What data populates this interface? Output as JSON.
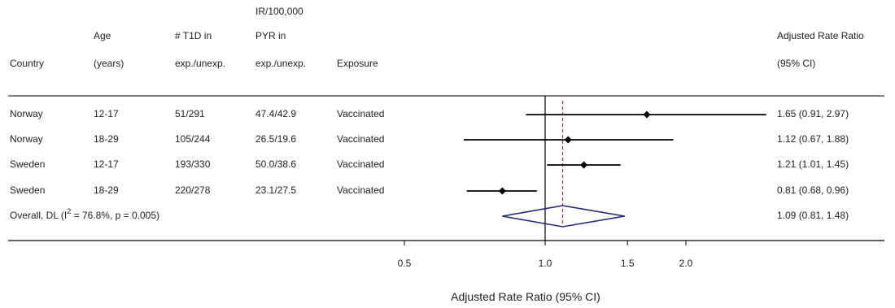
{
  "chart_data": {
    "type": "forest",
    "title": "",
    "xlabel": "Adjusted Rate Ratio (95% CI)",
    "x_scale": "log",
    "xlim": [
      0.5,
      2.6
    ],
    "x_ticks": [
      0.5,
      1.0,
      1.5,
      2.0
    ],
    "x_tick_labels": [
      "0.5",
      "1.0",
      "1.5",
      "2.0"
    ],
    "null_value": 1.0,
    "pooled_line_value": 1.09,
    "columns": {
      "country": [
        "Country"
      ],
      "age": [
        "Age",
        "(years)"
      ],
      "t1d": [
        "# T1D in",
        "exp./unexp."
      ],
      "ir": [
        "IR/100,000",
        "PYR in",
        "exp./unexp."
      ],
      "exposure": [
        "Exposure"
      ],
      "estimate": [
        "Adjusted Rate Ratio",
        "(95% CI)"
      ]
    },
    "studies": [
      {
        "country": "Norway",
        "age": "12-17",
        "t1d": "51/291",
        "ir": "47.4/42.9",
        "exposure": "Vaccinated",
        "rr": 1.65,
        "lower": 0.91,
        "upper": 2.97,
        "label": "1.65 (0.91, 2.97)"
      },
      {
        "country": "Norway",
        "age": "18-29",
        "t1d": "105/244",
        "ir": "26.5/19.6",
        "exposure": "Vaccinated",
        "rr": 1.12,
        "lower": 0.67,
        "upper": 1.88,
        "label": "1.12 (0.67, 1.88)"
      },
      {
        "country": "Sweden",
        "age": "12-17",
        "t1d": "193/330",
        "ir": "50.0/38.6",
        "exposure": "Vaccinated",
        "rr": 1.21,
        "lower": 1.01,
        "upper": 1.45,
        "label": "1.21 (1.01, 1.45)"
      },
      {
        "country": "Sweden",
        "age": "18-29",
        "t1d": "220/278",
        "ir": "23.1/27.5",
        "exposure": "Vaccinated",
        "rr": 0.81,
        "lower": 0.68,
        "upper": 0.96,
        "label": "0.81 (0.68, 0.96)"
      }
    ],
    "overall": {
      "label_prefix": "Overall, DL (I",
      "label_sup": "2",
      "label_suffix": " = 76.8%, p = 0.005)",
      "rr": 1.09,
      "lower": 0.81,
      "upper": 1.48,
      "label": "1.09 (0.81, 1.48)"
    },
    "colors": {
      "ci_line": "#000000",
      "point": "#000000",
      "diamond": "#1f2a80",
      "pooled_line": "#a0303a",
      "axis": "#000000"
    }
  }
}
